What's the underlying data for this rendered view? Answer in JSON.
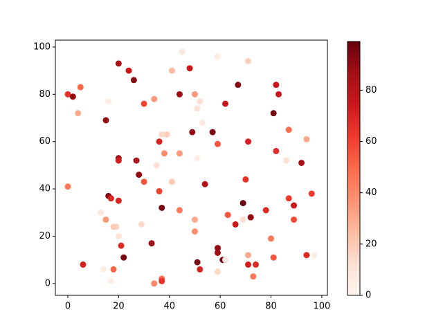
{
  "chart_data": {
    "type": "scatter",
    "x": [
      0,
      2,
      5,
      4,
      0,
      6,
      15,
      16,
      16,
      17,
      15,
      13,
      18,
      19,
      20,
      21,
      22,
      14,
      18,
      17,
      20,
      24,
      26,
      20,
      20,
      20,
      27,
      28,
      30,
      30,
      29,
      33,
      34,
      35,
      36,
      37,
      39,
      38,
      36,
      37,
      37,
      37,
      34,
      41,
      45,
      44,
      48,
      41,
      44,
      44,
      50,
      51,
      52,
      53,
      49,
      51,
      54,
      50,
      50,
      51,
      52,
      57,
      59,
      59,
      62,
      59,
      59,
      61,
      62,
      59,
      67,
      63,
      66,
      69,
      69,
      71,
      71,
      70,
      72,
      71,
      71,
      73,
      74,
      78,
      80,
      81,
      82,
      83,
      82,
      81,
      86,
      87,
      87,
      89,
      89,
      92,
      94,
      96,
      94,
      97
    ],
    "values": [
      80,
      79,
      83,
      72,
      41,
      8,
      69,
      77,
      37,
      36,
      27,
      30,
      24,
      24,
      20,
      16,
      11,
      6,
      6,
      1,
      93,
      90,
      86,
      53,
      52,
      35,
      52,
      46,
      43,
      76,
      25,
      17,
      78,
      50,
      60,
      63,
      63,
      55,
      39,
      32,
      2,
      1,
      0,
      90,
      98,
      80,
      91,
      43,
      55,
      31,
      80,
      74,
      77,
      68,
      64,
      53,
      42,
      27,
      22,
      9,
      6,
      64,
      59,
      96,
      76,
      15,
      13,
      10,
      10,
      5,
      84,
      29,
      25,
      27,
      34,
      94,
      60,
      44,
      28,
      12,
      8,
      3,
      8,
      31,
      19,
      72,
      84,
      80,
      56,
      11,
      52,
      65,
      36,
      33,
      27,
      51,
      61,
      38,
      12,
      12
    ],
    "color_values": [
      65,
      90,
      50,
      30,
      45,
      70,
      90,
      5,
      92,
      70,
      35,
      8,
      20,
      18,
      10,
      68,
      95,
      5,
      50,
      5,
      85,
      75,
      92,
      88,
      72,
      70,
      85,
      90,
      55,
      60,
      15,
      88,
      35,
      12,
      70,
      15,
      18,
      40,
      60,
      95,
      50,
      65,
      40,
      25,
      8,
      88,
      75,
      20,
      35,
      45,
      35,
      10,
      12,
      8,
      90,
      5,
      82,
      30,
      38,
      95,
      70,
      95,
      55,
      5,
      75,
      90,
      88,
      97,
      8,
      15,
      92,
      55,
      75,
      12,
      98,
      18,
      72,
      65,
      90,
      30,
      72,
      45,
      68,
      68,
      45,
      96,
      75,
      75,
      68,
      55,
      12,
      48,
      62,
      75,
      58,
      85,
      30,
      63,
      68,
      5
    ],
    "colormap": "Reds",
    "xlim": [
      -4.9,
      102.2
    ],
    "ylim": [
      -5,
      102.9
    ],
    "clim": [
      0,
      99
    ],
    "xticks": [
      0,
      20,
      40,
      60,
      80,
      100
    ],
    "yticks": [
      0,
      20,
      40,
      60,
      80,
      100
    ],
    "cticks": [
      0,
      20,
      40,
      60,
      80
    ]
  }
}
